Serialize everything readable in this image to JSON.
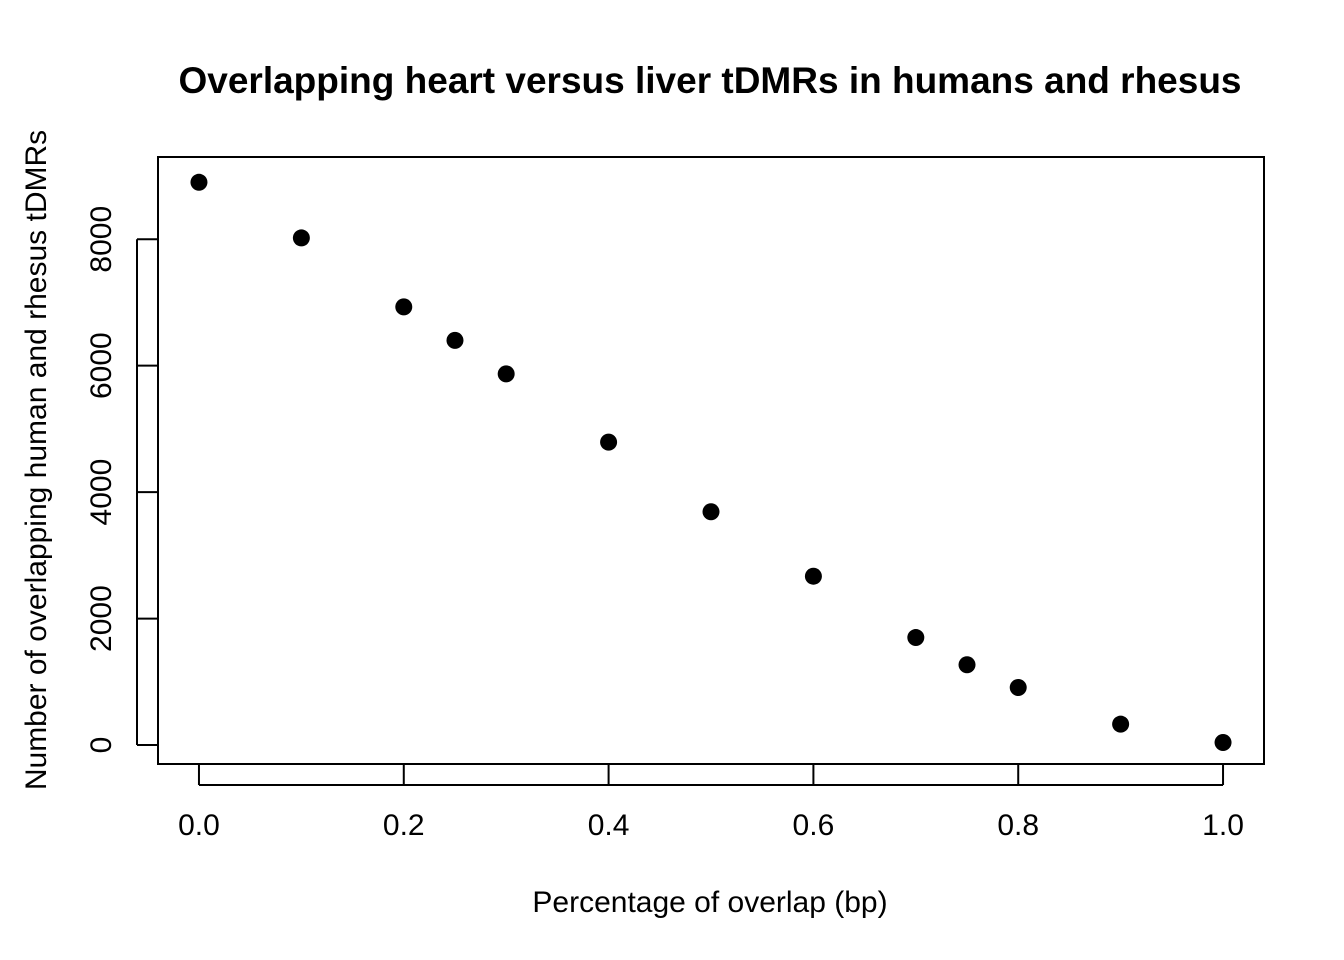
{
  "chart_data": {
    "type": "scatter",
    "title": "Overlapping heart versus liver tDMRs in humans and rhesus",
    "xlabel": "Percentage of overlap (bp)",
    "ylabel": "Number of overlapping human and rhesus tDMRs",
    "xlim": [
      -0.04,
      1.04
    ],
    "ylim": [
      -300,
      9300
    ],
    "x_ticks": [
      0.0,
      0.2,
      0.4,
      0.6,
      0.8,
      1.0
    ],
    "x_tick_labels": [
      "0.0",
      "0.2",
      "0.4",
      "0.6",
      "0.8",
      "1.0"
    ],
    "y_ticks": [
      0,
      2000,
      4000,
      6000,
      8000
    ],
    "y_tick_labels": [
      "0",
      "2000",
      "4000",
      "6000",
      "8000"
    ],
    "grid": false,
    "legend": "none",
    "marker_color": "#000000",
    "points": [
      {
        "x": 0.0,
        "y": 8900
      },
      {
        "x": 0.1,
        "y": 8020
      },
      {
        "x": 0.2,
        "y": 6930
      },
      {
        "x": 0.25,
        "y": 6400
      },
      {
        "x": 0.3,
        "y": 5870
      },
      {
        "x": 0.4,
        "y": 4790
      },
      {
        "x": 0.5,
        "y": 3690
      },
      {
        "x": 0.6,
        "y": 2670
      },
      {
        "x": 0.7,
        "y": 1700
      },
      {
        "x": 0.75,
        "y": 1270
      },
      {
        "x": 0.8,
        "y": 910
      },
      {
        "x": 0.9,
        "y": 330
      },
      {
        "x": 1.0,
        "y": 40
      }
    ]
  }
}
